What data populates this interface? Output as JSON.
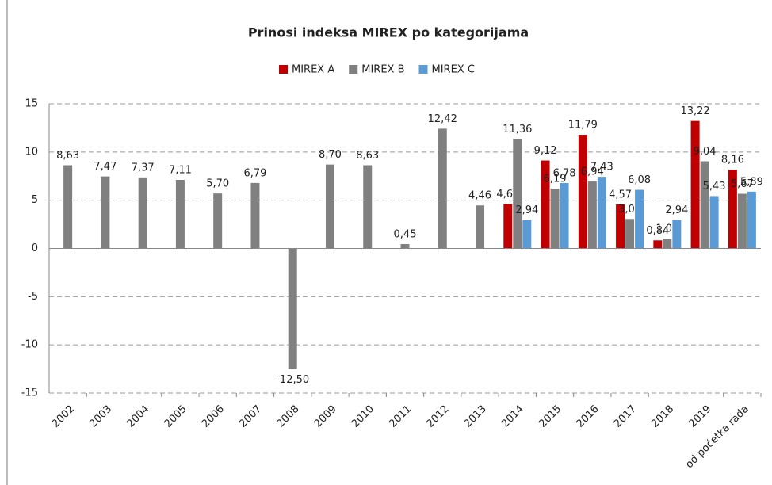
{
  "chart_data": {
    "type": "bar",
    "title": "Prinosi indeksa MIREX po kategorijama",
    "categories": [
      "2002",
      "2003",
      "2004",
      "2005",
      "2006",
      "2007",
      "2008",
      "2009",
      "2010",
      "2011",
      "2012",
      "2013",
      "2014",
      "2015",
      "2016",
      "2017",
      "2018",
      "2019",
      "od početka rada"
    ],
    "series": [
      {
        "name": "MIREX A",
        "color": "#c00000",
        "values": [
          null,
          null,
          null,
          null,
          null,
          null,
          null,
          null,
          null,
          null,
          null,
          null,
          4.6,
          9.12,
          11.79,
          4.57,
          0.84,
          13.22,
          8.16
        ],
        "value_labels": [
          null,
          null,
          null,
          null,
          null,
          null,
          null,
          null,
          null,
          null,
          null,
          null,
          "4,60",
          "9,12",
          "11,79",
          "4,57",
          "0,84",
          "13,22",
          "8,16"
        ]
      },
      {
        "name": "MIREX B",
        "color": "#808080",
        "values": [
          8.63,
          7.47,
          7.37,
          7.11,
          5.7,
          6.79,
          -12.5,
          8.7,
          8.63,
          0.45,
          12.42,
          4.46,
          11.36,
          6.19,
          6.94,
          3.06,
          1.02,
          9.04,
          5.67
        ],
        "value_labels": [
          "8,63",
          "7,47",
          "7,37",
          "7,11",
          "5,70",
          "6,79",
          "-12,50",
          "8,70",
          "8,63",
          "0,45",
          "12,42",
          "4,46",
          "11,36",
          "6,19",
          "6,94",
          "3,06",
          "1,02",
          "9,04",
          "5,67"
        ]
      },
      {
        "name": "MIREX C",
        "color": "#5b9bd5",
        "values": [
          null,
          null,
          null,
          null,
          null,
          null,
          null,
          null,
          null,
          null,
          null,
          null,
          2.94,
          6.78,
          7.43,
          6.08,
          2.94,
          5.43,
          5.89
        ],
        "value_labels": [
          null,
          null,
          null,
          null,
          null,
          null,
          null,
          null,
          null,
          null,
          null,
          null,
          "2,94",
          "6,78",
          "7,43",
          "6,08",
          "2,94",
          "5,43",
          "5,89"
        ]
      }
    ],
    "ylim": [
      -15,
      15
    ],
    "yticks": [
      -15,
      -10,
      -5,
      0,
      5,
      10,
      15
    ],
    "grid": true,
    "legend": "top"
  }
}
